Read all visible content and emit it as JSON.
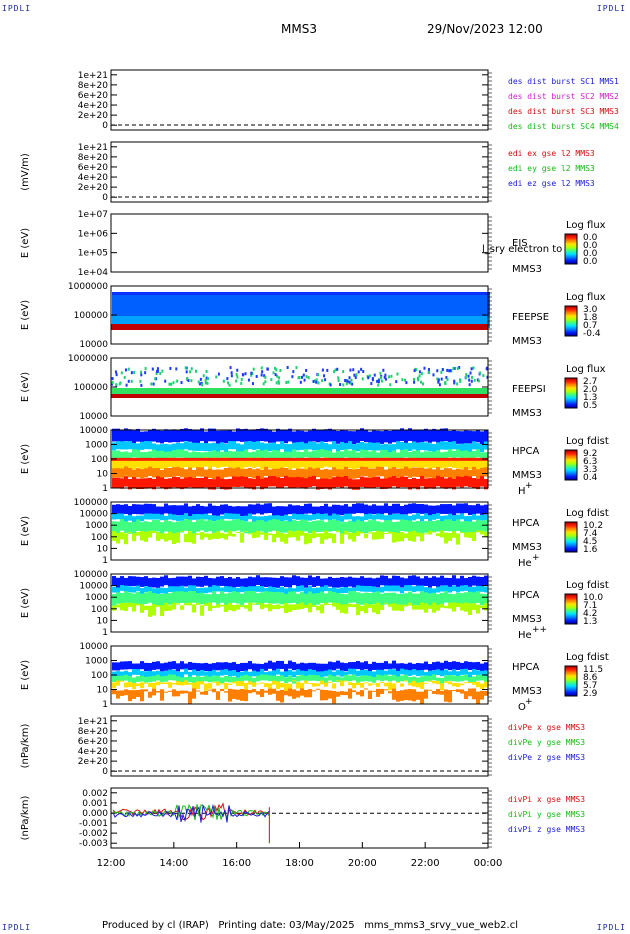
{
  "header": {
    "corner_tl": "IPDLI",
    "corner_tr": "IPDLI",
    "corner_bl": "IPDLI",
    "corner_br": "IPDLI",
    "spacecraft": "MMS3",
    "datetime": "29/Nov/2023 12:00"
  },
  "footer": {
    "text": "Produced by cl (IRAP)   Printing date: 03/May/2025   mms_mms3_srvy_vue_web2.cl"
  },
  "colors": {
    "blue": "#1b1bd6",
    "magenta": "#d21ad2",
    "red": "#d01010",
    "green": "#18b818",
    "frame": "#000000"
  },
  "chart_data": {
    "type": "line",
    "x_tick_labels": [
      "12:00",
      "14:00",
      "16:00",
      "18:00",
      "20:00",
      "22:00",
      "00:00"
    ],
    "panels": [
      {
        "id": "des-dist-burst",
        "ylabel": "",
        "yticks": [
          "1e+21",
          "8e+20",
          "6e+20",
          "4e+20",
          "2e+20",
          "0"
        ],
        "legend": [
          {
            "text": "des dist burst SC1 MMS1",
            "color": "#1b1bd6"
          },
          {
            "text": "des dist burst SC2 MMS2",
            "color": "#d21ad2"
          },
          {
            "text": "des dist burst SC3 MMS3",
            "color": "#d01010"
          },
          {
            "text": "des dist burst SC4 MMS4",
            "color": "#18b818"
          }
        ]
      },
      {
        "id": "edi-e-gse",
        "ylabel": "(mV/m)",
        "yticks": [
          "1e+21",
          "8e+20",
          "6e+20",
          "4e+20",
          "2e+20",
          "0"
        ],
        "legend": [
          {
            "text": "edi ex gse l2 MMS3",
            "color": "#d01010"
          },
          {
            "text": "edi ey gse l2 MMS3",
            "color": "#18b818"
          },
          {
            "text": "edi ez gse l2 MMS3",
            "color": "#1b1bd6"
          }
        ]
      },
      {
        "id": "eis",
        "ylabel": "E (eV)",
        "yticks": [
          "1e+07",
          "1e+06",
          "1e+05",
          "1e+04"
        ],
        "side_lines": [
          "EIS",
          "MMS3"
        ],
        "overlay": "l_sry electron to",
        "cb_title": "Log flux",
        "cb_ticks": [
          "0.0",
          "0.0",
          "0.0",
          "0.0"
        ]
      },
      {
        "id": "feepse",
        "ylabel": "E (eV)",
        "yticks": [
          "1000000",
          "100000",
          "10000"
        ],
        "side_lines": [
          "FEEPSE",
          "MMS3"
        ],
        "cb_title": "Log flux",
        "cb_ticks": [
          "3.0",
          "1.8",
          "0.7",
          "-0.4"
        ]
      },
      {
        "id": "feepsi",
        "ylabel": "E (eV)",
        "yticks": [
          "1000000",
          "100000",
          "10000"
        ],
        "side_lines": [
          "FEEPSI",
          "MMS3"
        ],
        "cb_title": "Log flux",
        "cb_ticks": [
          "2.7",
          "2.0",
          "1.3",
          "0.5"
        ]
      },
      {
        "id": "hpca-h",
        "ylabel": "E (eV)",
        "yticks": [
          "10000",
          "1000",
          "100",
          "10",
          "1"
        ],
        "side_lines": [
          "HPCA",
          "MMS3"
        ],
        "species": "H",
        "species_sup": "+",
        "cb_title": "Log fdist",
        "cb_ticks": [
          "9.2",
          "6.3",
          "3.3",
          "0.4"
        ]
      },
      {
        "id": "hpca-he",
        "ylabel": "E (eV)",
        "yticks": [
          "100000",
          "10000",
          "1000",
          "100",
          "10",
          "1"
        ],
        "side_lines": [
          "HPCA",
          "MMS3"
        ],
        "species": "He",
        "species_sup": "+",
        "cb_title": "Log fdist",
        "cb_ticks": [
          "10.2",
          "7.4",
          "4.5",
          "1.6"
        ]
      },
      {
        "id": "hpca-hepp",
        "ylabel": "E (eV)",
        "yticks": [
          "100000",
          "10000",
          "1000",
          "100",
          "10",
          "1"
        ],
        "side_lines": [
          "HPCA",
          "MMS3"
        ],
        "species": "He",
        "species_sup": "++",
        "cb_title": "Log fdist",
        "cb_ticks": [
          "10.0",
          "7.1",
          "4.2",
          "1.3"
        ]
      },
      {
        "id": "hpca-o",
        "ylabel": "E (eV)",
        "yticks": [
          "10000",
          "1000",
          "100",
          "10",
          "1"
        ],
        "side_lines": [
          "HPCA",
          "MMS3"
        ],
        "species": "O",
        "species_sup": "+",
        "cb_title": "Log fdist",
        "cb_ticks": [
          "11.5",
          "8.6",
          "5.7",
          "2.9"
        ]
      },
      {
        "id": "divpe",
        "ylabel": "(nPa/km)",
        "yticks": [
          "1e+21",
          "8e+20",
          "6e+20",
          "4e+20",
          "2e+20",
          "0"
        ],
        "legend": [
          {
            "text": "divPe x gse MMS3",
            "color": "#d01010"
          },
          {
            "text": "divPe y gse MMS3",
            "color": "#18b818"
          },
          {
            "text": "divPe z gse MMS3",
            "color": "#1b1bd6"
          }
        ]
      },
      {
        "id": "divpi",
        "ylabel": "(nPa/km)",
        "yticks": [
          "0.002",
          "0.001",
          "0.000",
          "-0.001",
          "-0.002",
          "-0.003"
        ],
        "legend": [
          {
            "text": "divPi x gse MMS3",
            "color": "#d01010"
          },
          {
            "text": "divPi y gse MMS3",
            "color": "#18b818"
          },
          {
            "text": "divPi z gse MMS3",
            "color": "#1b1bd6"
          }
        ]
      }
    ]
  }
}
